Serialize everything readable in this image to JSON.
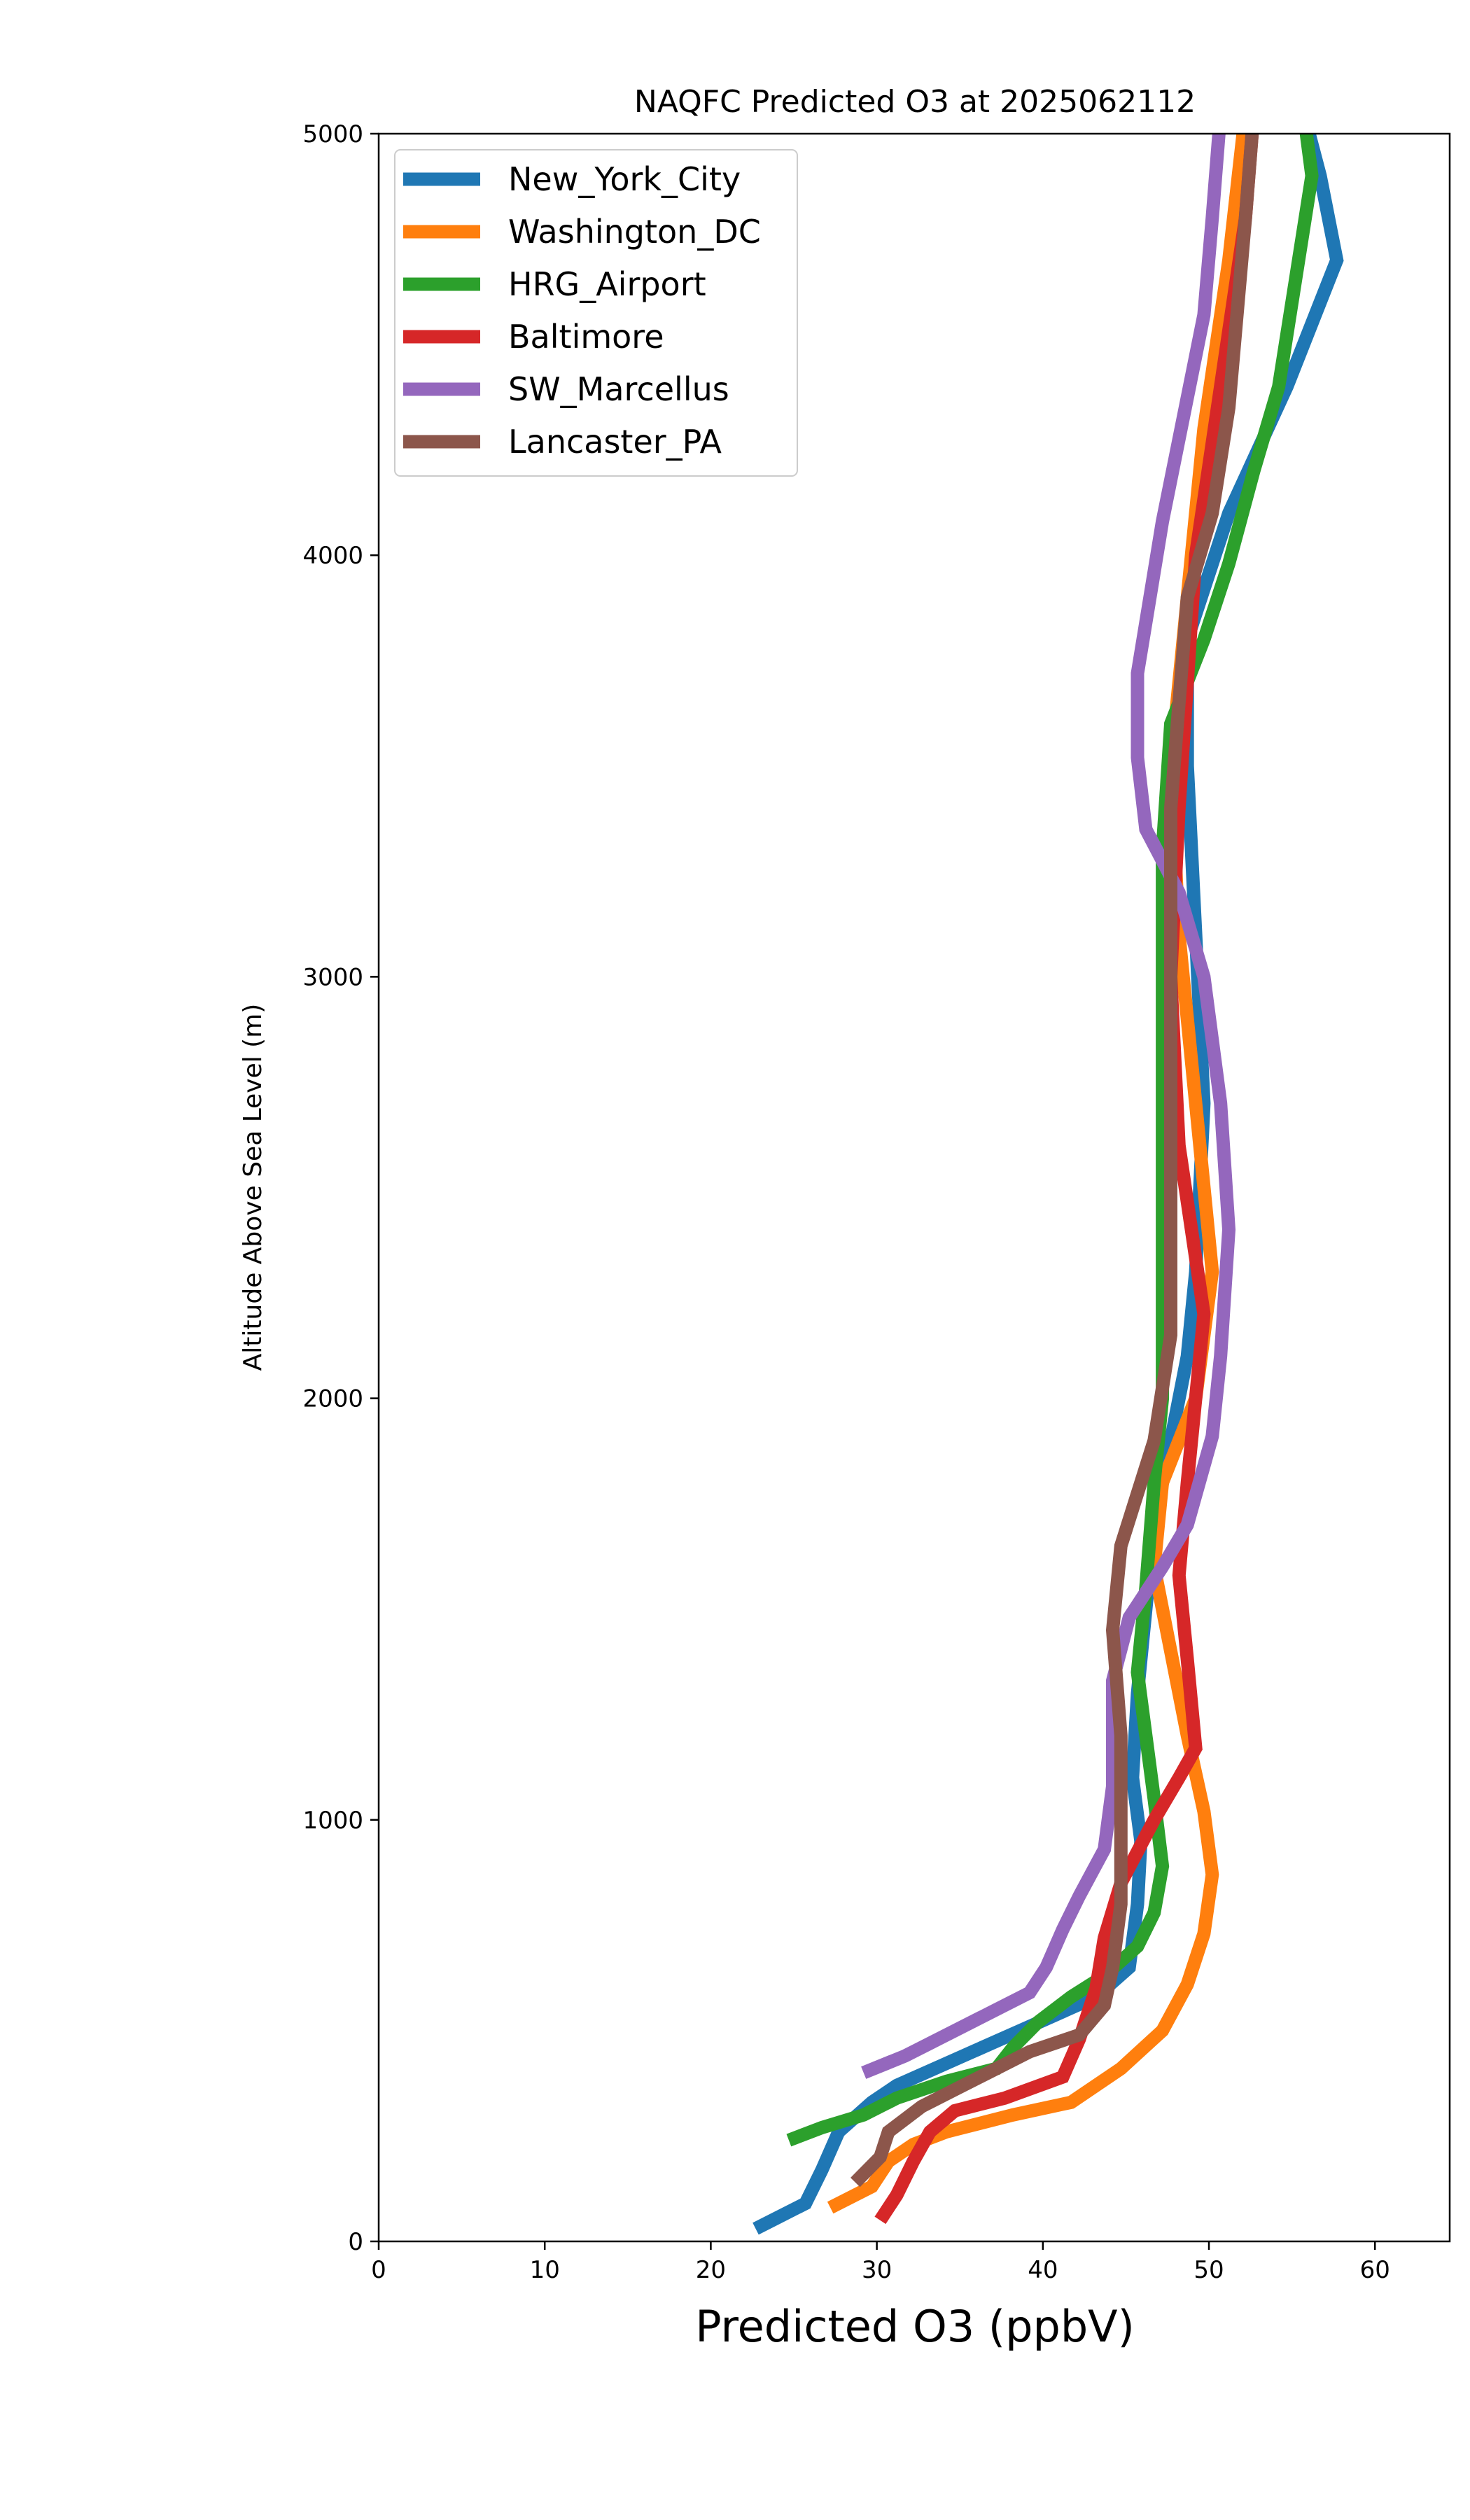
{
  "chart_data": {
    "type": "line",
    "title": "NAQFC Predicted O3 at 2025062112",
    "xlabel": "Predicted O3 (ppbV)",
    "ylabel": "Altitude Above Sea Level (m)",
    "xlim": [
      0,
      64.5
    ],
    "ylim": [
      0,
      5000
    ],
    "xticks": [
      0,
      10,
      20,
      30,
      40,
      50,
      60
    ],
    "yticks": [
      0,
      1000,
      2000,
      3000,
      4000,
      5000
    ],
    "grid": false,
    "legend_position": "top-left",
    "series": [
      {
        "name": "New_York_City",
        "color": "#1f77b4",
        "points": [
          [
            22.7,
            30
          ],
          [
            25.7,
            90
          ],
          [
            26.7,
            170
          ],
          [
            27.7,
            260
          ],
          [
            29.7,
            330
          ],
          [
            31.2,
            370
          ],
          [
            35.2,
            440
          ],
          [
            39.2,
            510
          ],
          [
            43.2,
            580
          ],
          [
            45.2,
            650
          ],
          [
            45.7,
            800
          ],
          [
            45.9,
            950
          ],
          [
            45.4,
            1100
          ],
          [
            45.7,
            1300
          ],
          [
            46.2,
            1500
          ],
          [
            46.7,
            1700
          ],
          [
            47.7,
            1900
          ],
          [
            48.7,
            2100
          ],
          [
            49.2,
            2300
          ],
          [
            49.7,
            2700
          ],
          [
            49.2,
            3100
          ],
          [
            48.7,
            3500
          ],
          [
            48.7,
            3800
          ],
          [
            51.2,
            4100
          ],
          [
            54.7,
            4400
          ],
          [
            57.7,
            4700
          ],
          [
            56.7,
            4900
          ],
          [
            55.7,
            5050
          ]
        ]
      },
      {
        "name": "Washington_DC",
        "color": "#ff7f0e",
        "points": [
          [
            27.2,
            80
          ],
          [
            29.7,
            130
          ],
          [
            30.7,
            190
          ],
          [
            32.2,
            230
          ],
          [
            34.2,
            260
          ],
          [
            38.2,
            300
          ],
          [
            41.7,
            330
          ],
          [
            44.7,
            410
          ],
          [
            47.2,
            500
          ],
          [
            48.7,
            610
          ],
          [
            49.7,
            730
          ],
          [
            50.2,
            870
          ],
          [
            49.7,
            1020
          ],
          [
            48.7,
            1200
          ],
          [
            47.7,
            1400
          ],
          [
            46.7,
            1600
          ],
          [
            47.2,
            1800
          ],
          [
            49.2,
            2000
          ],
          [
            50.2,
            2300
          ],
          [
            49.2,
            2700
          ],
          [
            48.2,
            3100
          ],
          [
            47.7,
            3500
          ],
          [
            48.7,
            3900
          ],
          [
            49.7,
            4300
          ],
          [
            51.2,
            4700
          ],
          [
            52.2,
            5050
          ]
        ]
      },
      {
        "name": "HRG_Airport",
        "color": "#2ca02c",
        "points": [
          [
            24.7,
            240
          ],
          [
            26.7,
            270
          ],
          [
            29.2,
            300
          ],
          [
            31.2,
            340
          ],
          [
            34.2,
            380
          ],
          [
            37.2,
            410
          ],
          [
            38.2,
            460
          ],
          [
            39.7,
            520
          ],
          [
            41.7,
            580
          ],
          [
            43.7,
            630
          ],
          [
            45.7,
            700
          ],
          [
            46.7,
            780
          ],
          [
            47.2,
            890
          ],
          [
            46.7,
            1050
          ],
          [
            46.2,
            1200
          ],
          [
            45.7,
            1350
          ],
          [
            46.2,
            1550
          ],
          [
            46.7,
            1800
          ],
          [
            47.2,
            2000
          ],
          [
            47.2,
            2500
          ],
          [
            47.2,
            3000
          ],
          [
            47.2,
            3300
          ],
          [
            47.7,
            3600
          ],
          [
            49.7,
            3800
          ],
          [
            51.2,
            3980
          ],
          [
            52.7,
            4200
          ],
          [
            54.2,
            4400
          ],
          [
            55.2,
            4650
          ],
          [
            56.2,
            4900
          ],
          [
            55.7,
            5050
          ]
        ]
      },
      {
        "name": "Baltimore",
        "color": "#d62728",
        "points": [
          [
            30.2,
            50
          ],
          [
            31.2,
            110
          ],
          [
            32.2,
            190
          ],
          [
            33.2,
            260
          ],
          [
            34.7,
            310
          ],
          [
            37.7,
            340
          ],
          [
            41.2,
            390
          ],
          [
            42.2,
            480
          ],
          [
            43.2,
            600
          ],
          [
            43.7,
            720
          ],
          [
            44.7,
            850
          ],
          [
            46.7,
            1000
          ],
          [
            48.2,
            1100
          ],
          [
            49.2,
            1170
          ],
          [
            48.7,
            1380
          ],
          [
            48.2,
            1580
          ],
          [
            48.7,
            1800
          ],
          [
            49.2,
            2000
          ],
          [
            49.7,
            2200
          ],
          [
            48.2,
            2600
          ],
          [
            47.7,
            3000
          ],
          [
            48.2,
            3400
          ],
          [
            48.7,
            3700
          ],
          [
            49.2,
            4000
          ],
          [
            50.7,
            4400
          ],
          [
            52.2,
            4800
          ],
          [
            52.7,
            5050
          ]
        ]
      },
      {
        "name": "SW_Marcellus",
        "color": "#9467bd",
        "points": [
          [
            29.2,
            400
          ],
          [
            31.7,
            440
          ],
          [
            33.2,
            470
          ],
          [
            35.2,
            510
          ],
          [
            37.2,
            550
          ],
          [
            39.2,
            590
          ],
          [
            40.2,
            650
          ],
          [
            41.2,
            740
          ],
          [
            42.2,
            820
          ],
          [
            43.7,
            930
          ],
          [
            44.2,
            1080
          ],
          [
            44.2,
            1200
          ],
          [
            44.2,
            1330
          ],
          [
            45.2,
            1480
          ],
          [
            47.2,
            1600
          ],
          [
            48.7,
            1700
          ],
          [
            50.2,
            1910
          ],
          [
            50.7,
            2100
          ],
          [
            51.2,
            2400
          ],
          [
            50.7,
            2700
          ],
          [
            49.7,
            3000
          ],
          [
            48.2,
            3200
          ],
          [
            46.2,
            3350
          ],
          [
            45.7,
            3520
          ],
          [
            45.7,
            3720
          ],
          [
            47.2,
            4080
          ],
          [
            49.7,
            4570
          ],
          [
            50.2,
            4800
          ],
          [
            50.7,
            5050
          ]
        ]
      },
      {
        "name": "Lancaster_PA",
        "color": "#8c564b",
        "points": [
          [
            28.7,
            140
          ],
          [
            30.2,
            200
          ],
          [
            30.7,
            260
          ],
          [
            32.7,
            320
          ],
          [
            34.7,
            360
          ],
          [
            36.7,
            400
          ],
          [
            39.2,
            450
          ],
          [
            42.2,
            490
          ],
          [
            43.7,
            560
          ],
          [
            44.2,
            650
          ],
          [
            44.7,
            800
          ],
          [
            44.7,
            1000
          ],
          [
            44.7,
            1200
          ],
          [
            44.2,
            1450
          ],
          [
            44.7,
            1650
          ],
          [
            46.7,
            1900
          ],
          [
            47.7,
            2150
          ],
          [
            47.7,
            2500
          ],
          [
            47.7,
            2800
          ],
          [
            47.7,
            3100
          ],
          [
            47.7,
            3400
          ],
          [
            48.2,
            3650
          ],
          [
            48.7,
            3900
          ],
          [
            50.2,
            4100
          ],
          [
            51.2,
            4350
          ],
          [
            52.2,
            4800
          ],
          [
            52.7,
            5050
          ]
        ]
      }
    ]
  }
}
